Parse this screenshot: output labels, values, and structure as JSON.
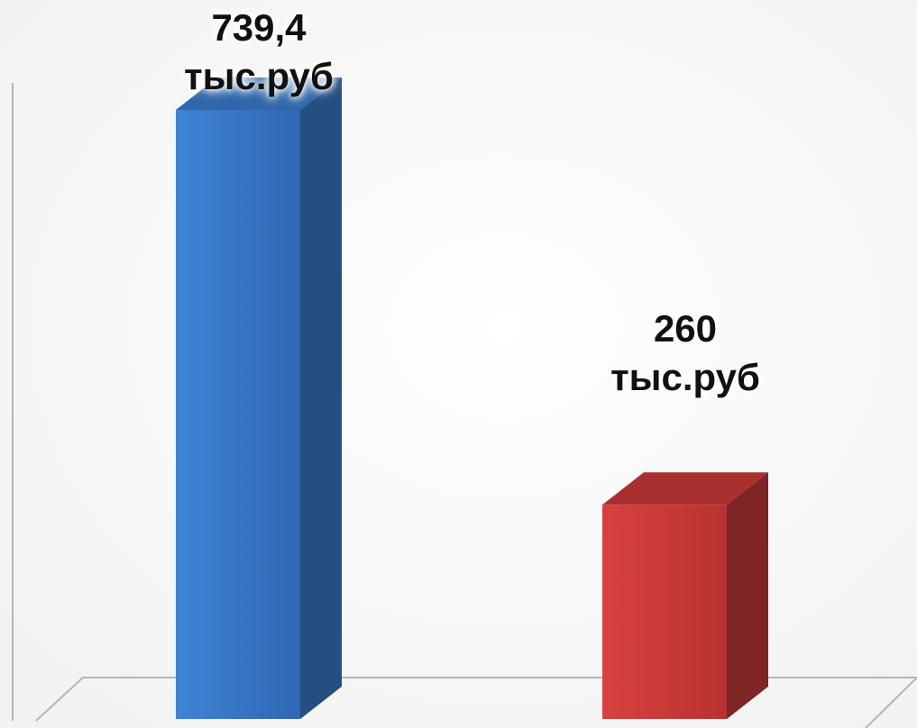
{
  "chart_data": {
    "type": "bar",
    "categories": [
      "",
      ""
    ],
    "series": [
      {
        "values": [
          739.4,
          260
        ],
        "data_labels": [
          {
            "value": "739,4",
            "unit": "тыс.руб"
          },
          {
            "value": "260",
            "unit": "тыс.руб"
          }
        ]
      }
    ],
    "bar_colors": [
      "#3b7dd0",
      "#cf3b3b"
    ],
    "title": "",
    "xlabel": "",
    "ylabel": "",
    "ylim": [
      0,
      770
    ],
    "grid": false,
    "legend": "none",
    "style": "3d-columns"
  }
}
